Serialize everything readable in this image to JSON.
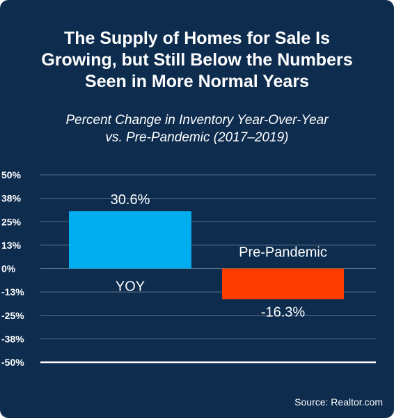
{
  "title": "The Supply of Homes for Sale Is\nGrowing, but Still Below the Numbers\nSeen in More Normal Years",
  "subtitle": "Percent Change in Inventory Year-Over-Year\nvs. Pre-Pandemic (2017–2019)",
  "source": "Source: Realtor.com",
  "colors": {
    "background": "#0d2c4e",
    "yoy_bar": "#00aeef",
    "prepandemic_bar": "#ff3d00",
    "gridline": "#5f7186",
    "baseline": "#ffffff"
  },
  "chart_data": {
    "type": "bar",
    "categories": [
      "YOY",
      "Pre-Pandemic"
    ],
    "values": [
      30.6,
      -16.3
    ],
    "value_labels": [
      "30.6%",
      "-16.3%"
    ],
    "title": "The Supply of Homes for Sale Is Growing, but Still Below the Numbers Seen in More Normal Years",
    "subtitle": "Percent Change in Inventory Year-Over-Year vs. Pre-Pandemic (2017–2019)",
    "xlabel": "",
    "ylabel": "",
    "ylim": [
      -50,
      50
    ],
    "yticks": [
      50,
      37.5,
      25,
      12.5,
      0,
      -12.5,
      -25,
      -37.5,
      -50
    ],
    "ytick_labels": [
      "50%",
      "38%",
      "25%",
      "13%",
      "0%",
      "-13%",
      "-25%",
      "-38%",
      "-50%"
    ],
    "grid": true,
    "legend": false
  }
}
